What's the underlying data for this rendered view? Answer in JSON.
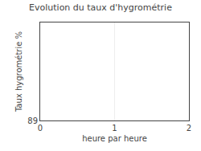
{
  "chart_data": {
    "type": "line",
    "title": "Evolution du taux d'hygrométrie",
    "xlabel": "heure par heure",
    "ylabel": "Taux hygrométrie %",
    "xlim": [
      0,
      2
    ],
    "xticks": [
      0,
      1,
      2
    ],
    "ylim": [
      89.0,
      93.5
    ],
    "yticks": [
      89.0
    ],
    "grid": true
  }
}
